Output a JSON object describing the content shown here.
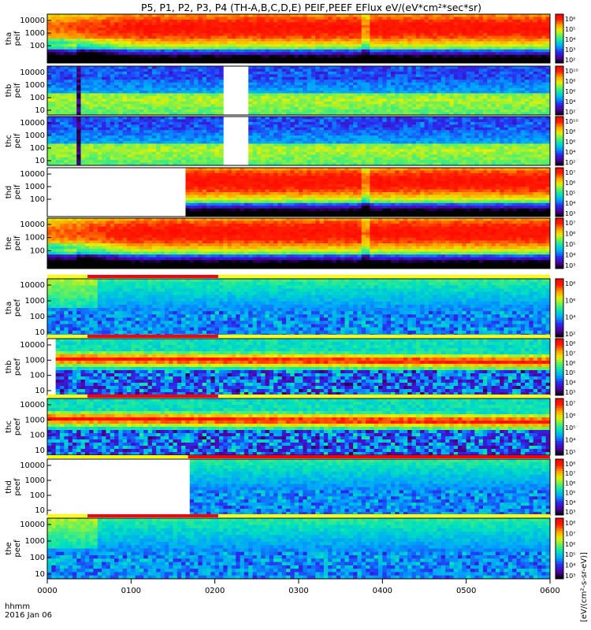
{
  "title": "P5, P1, P2, P3, P4 (TH-A,B,C,D,E) PEIF,PEEF EFlux eV/(eV*cm²*sec*sr)",
  "footer": {
    "time_label": "hhmm",
    "date_label": "2016 Jan 06"
  },
  "colorbar_unit": "[eV/(cm²-s-sr-eV)]",
  "chart_data": {
    "type": "heatmap",
    "x_tick_labels": [
      "0000",
      "0100",
      "0200",
      "0300",
      "0400",
      "0500",
      "0600"
    ],
    "x_range_hhmm": [
      "0000",
      "0600"
    ],
    "y_scale": "log",
    "palette": [
      "#000000",
      "#5000a0",
      "#2a2af0",
      "#00a0ff",
      "#00e0c0",
      "#60f060",
      "#e8f000",
      "#ffa000",
      "#ff2000",
      "#ff0000"
    ],
    "panels": [
      {
        "label": [
          "tha",
          "peif"
        ],
        "yticks": [
          "10000",
          "1000",
          "100"
        ],
        "cticks": [
          "10⁶",
          "10⁵",
          "10⁴",
          "10³",
          "10²"
        ],
        "mode": "ion_early",
        "gaps": []
      },
      {
        "label": [
          "thb",
          "peif"
        ],
        "yticks": [
          "10000",
          "1000",
          "100",
          "10"
        ],
        "cticks": [
          "10¹⁰",
          "10⁸",
          "10⁶",
          "10⁴",
          "10²"
        ],
        "mode": "lowflux",
        "gaps": [
          [
            2.08,
            2.38
          ]
        ]
      },
      {
        "label": [
          "thc",
          "peif"
        ],
        "yticks": [
          "10000",
          "1000",
          "100",
          "10"
        ],
        "cticks": [
          "10¹⁰",
          "10⁸",
          "10⁶",
          "10⁴",
          "10²"
        ],
        "mode": "lowflux",
        "gaps": [
          [
            2.08,
            2.38
          ]
        ]
      },
      {
        "label": [
          "thd",
          "peif"
        ],
        "yticks": [
          "10000",
          "1000",
          "100"
        ],
        "cticks": [
          "10⁷",
          "10⁶",
          "10⁵",
          "10⁴",
          "10³"
        ],
        "mode": "ion",
        "gaps": [
          [
            0.0,
            1.65
          ]
        ]
      },
      {
        "label": [
          "the",
          "peif"
        ],
        "yticks": [
          "10000",
          "1000",
          "100"
        ],
        "cticks": [
          "10⁷",
          "10⁶",
          "10⁵",
          "10⁴",
          "10³"
        ],
        "mode": "ion_early",
        "gaps": []
      },
      {
        "label": [
          "tha",
          "peef"
        ],
        "yticks": [
          "10000",
          "1000",
          "100",
          "10"
        ],
        "cticks": [
          "10⁸",
          "10⁶",
          "10⁴",
          "10²"
        ],
        "mode": "electron",
        "gaps": []
      },
      {
        "label": [
          "thb",
          "peef"
        ],
        "yticks": [
          "10000",
          "1000",
          "100",
          "10"
        ],
        "cticks": [
          "10⁸",
          "10⁷",
          "10⁶",
          "10⁵",
          "10⁴",
          "10³"
        ],
        "mode": "electron_band",
        "gaps": [
          [
            0.0,
            0.12
          ]
        ]
      },
      {
        "label": [
          "thc",
          "peef"
        ],
        "yticks": [
          "10000",
          "1000",
          "100",
          "10"
        ],
        "cticks": [
          "10⁷",
          "10⁶",
          "10⁵",
          "10⁴",
          "10³"
        ],
        "mode": "electron_band",
        "gaps": []
      },
      {
        "label": [
          "thd",
          "peef"
        ],
        "yticks": [
          "10000",
          "1000",
          "100",
          "10"
        ],
        "cticks": [
          "10⁸",
          "10⁷",
          "10⁶",
          "10⁵",
          "10⁴",
          "10³"
        ],
        "mode": "electron",
        "gaps": [
          [
            0.0,
            1.68
          ]
        ]
      },
      {
        "label": [
          "the",
          "peef"
        ],
        "yticks": [
          "10000",
          "1000",
          "100",
          "10"
        ],
        "cticks": [
          "10⁸",
          "10⁷",
          "10⁶",
          "10⁵",
          "10⁴",
          "10³"
        ],
        "mode": "electron",
        "gaps": []
      }
    ]
  }
}
